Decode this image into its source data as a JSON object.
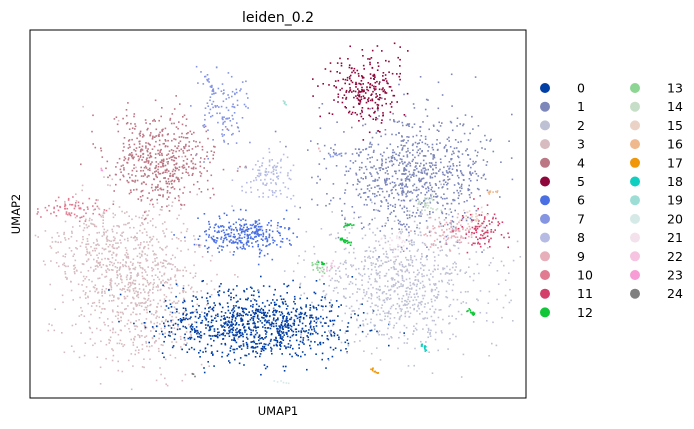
{
  "chart_data": {
    "type": "scatter",
    "title": "leiden_0.2",
    "xlabel": "UMAP1",
    "ylabel": "UMAP2",
    "ticks": false,
    "legend_placement": "right-outside",
    "legend_columns": 2,
    "series": [
      {
        "name": "0",
        "color": "#023fa5"
      },
      {
        "name": "1",
        "color": "#7d87b9"
      },
      {
        "name": "2",
        "color": "#bec1d4"
      },
      {
        "name": "3",
        "color": "#d6bcc0"
      },
      {
        "name": "4",
        "color": "#bb7784"
      },
      {
        "name": "5",
        "color": "#8e063b"
      },
      {
        "name": "6",
        "color": "#4a6fe3"
      },
      {
        "name": "7",
        "color": "#8595e1"
      },
      {
        "name": "8",
        "color": "#b5bbe3"
      },
      {
        "name": "9",
        "color": "#e6afb9"
      },
      {
        "name": "10",
        "color": "#e07b91"
      },
      {
        "name": "11",
        "color": "#d33f6a"
      },
      {
        "name": "12",
        "color": "#11c638"
      },
      {
        "name": "13",
        "color": "#8dd593"
      },
      {
        "name": "14",
        "color": "#c6dec7"
      },
      {
        "name": "15",
        "color": "#ead3c6"
      },
      {
        "name": "16",
        "color": "#f0b98d"
      },
      {
        "name": "17",
        "color": "#ef9708"
      },
      {
        "name": "18",
        "color": "#0fcfc0"
      },
      {
        "name": "19",
        "color": "#9cded6"
      },
      {
        "name": "20",
        "color": "#d5eae7"
      },
      {
        "name": "21",
        "color": "#f3e1eb"
      },
      {
        "name": "22",
        "color": "#f6c4e1"
      },
      {
        "name": "23",
        "color": "#f79cd4"
      },
      {
        "name": "24",
        "color": "#7f7f7f"
      }
    ]
  }
}
